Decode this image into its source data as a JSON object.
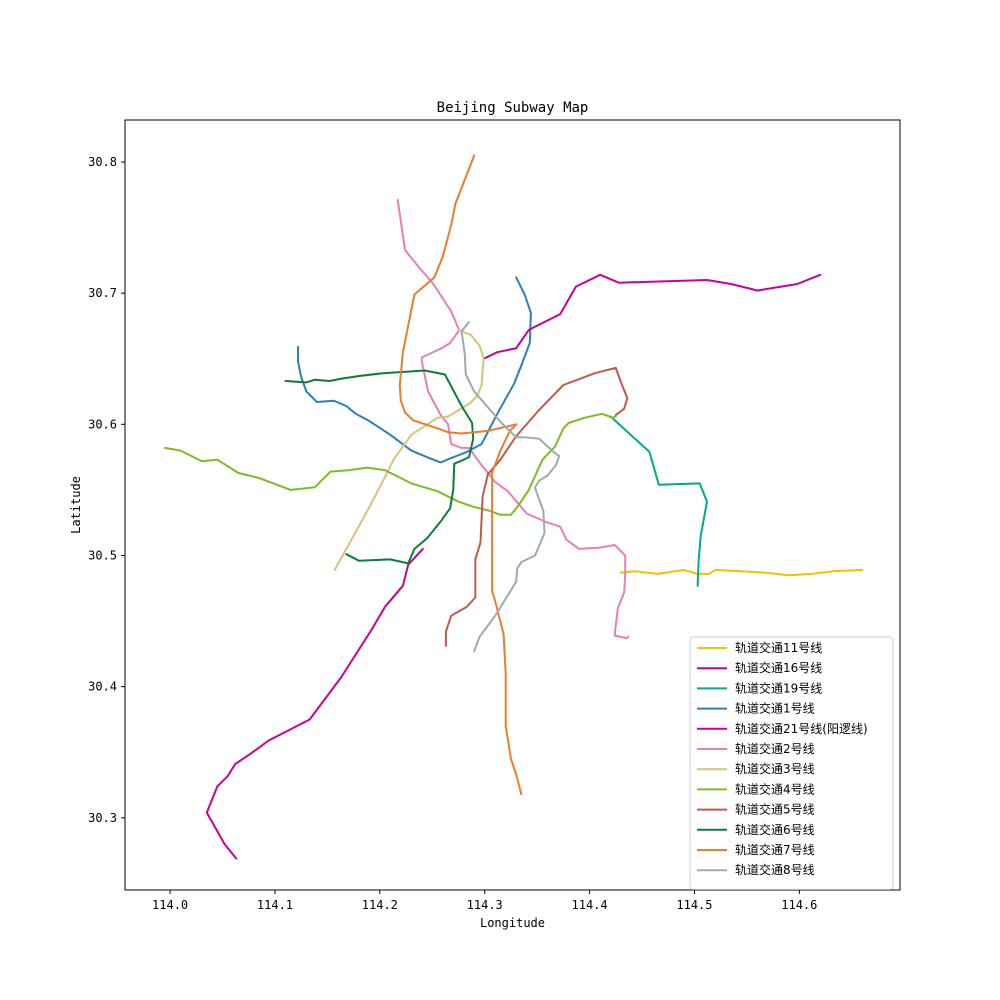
{
  "chart_data": {
    "type": "line",
    "title": "Beijing Subway Map",
    "xlabel": "Longitude",
    "ylabel": "Latitude",
    "xlim": [
      113.957,
      114.696
    ],
    "ylim": [
      30.245,
      30.832
    ],
    "xticks": [
      114.0,
      114.1,
      114.2,
      114.3,
      114.4,
      114.5,
      114.6
    ],
    "xtick_labels": [
      "114.0",
      "114.1",
      "114.2",
      "114.3",
      "114.4",
      "114.5",
      "114.6"
    ],
    "yticks": [
      30.3,
      30.4,
      30.5,
      30.6,
      30.7,
      30.8
    ],
    "ytick_labels": [
      "30.3",
      "30.4",
      "30.5",
      "30.6",
      "30.7",
      "30.8"
    ],
    "grid": false,
    "legend_position": "lower-right",
    "series": [
      {
        "name": "轨道交通11号线",
        "color": "#f2c200",
        "x": [
          114.43,
          114.443,
          114.465,
          114.49,
          114.503,
          114.514,
          114.52,
          114.545,
          114.567,
          114.59,
          114.612,
          114.632,
          114.66
        ],
        "y": [
          30.487,
          30.488,
          30.486,
          30.489,
          30.486,
          30.486,
          30.489,
          30.488,
          30.487,
          30.485,
          30.486,
          30.488,
          30.489
        ]
      },
      {
        "name": "轨道交通16号线",
        "color": "#cc0099",
        "x": [
          114.063,
          114.052,
          114.035,
          114.045,
          114.055,
          114.062,
          114.077,
          114.094,
          114.133,
          114.163,
          114.191,
          114.205,
          114.222,
          114.227,
          114.241
        ],
        "y": [
          30.269,
          30.28,
          30.304,
          30.324,
          30.332,
          30.341,
          30.349,
          30.359,
          30.375,
          30.407,
          30.442,
          30.461,
          30.477,
          30.493,
          30.505
        ]
      },
      {
        "name": "轨道交通19号线",
        "color": "#00a88e",
        "x": [
          114.42,
          114.457,
          114.466,
          114.505,
          114.512,
          114.506,
          114.504,
          114.503
        ],
        "y": [
          30.606,
          30.579,
          30.554,
          30.555,
          30.541,
          30.515,
          30.496,
          30.477
        ]
      },
      {
        "name": "轨道交通1号线",
        "color": "#2e7fb8",
        "x": [
          114.122,
          114.122,
          114.125,
          114.13,
          114.14,
          114.156,
          114.168,
          114.177,
          114.189,
          114.21,
          114.23,
          114.248,
          114.258,
          114.267,
          114.283,
          114.297,
          114.312,
          114.328,
          114.335,
          114.343,
          114.344,
          114.338,
          114.33
        ],
        "y": [
          30.659,
          30.648,
          30.636,
          30.625,
          30.617,
          30.618,
          30.614,
          30.608,
          30.603,
          30.592,
          30.58,
          30.574,
          30.571,
          30.574,
          30.579,
          30.585,
          30.608,
          30.631,
          30.645,
          30.662,
          30.685,
          30.699,
          30.712
        ]
      },
      {
        "name": "轨道交通21号线(阳逻线)",
        "color": "#cc0099",
        "x": [
          114.299,
          114.312,
          114.33,
          114.342,
          114.352,
          114.372,
          114.387,
          114.41,
          114.428,
          114.512,
          114.535,
          114.56,
          114.598,
          114.62
        ],
        "y": [
          30.65,
          30.655,
          30.658,
          30.672,
          30.676,
          30.684,
          30.705,
          30.714,
          30.708,
          30.71,
          30.707,
          30.702,
          30.707,
          30.714
        ]
      },
      {
        "name": "轨道交通2号线",
        "color": "#e87eb8",
        "x": [
          114.217,
          114.224,
          114.237,
          114.251,
          114.268,
          114.275,
          114.275,
          114.267,
          114.259,
          114.24,
          114.24,
          114.246,
          114.258,
          114.265,
          114.268,
          114.278,
          114.285,
          114.296,
          114.31,
          114.322,
          114.34,
          114.36,
          114.372,
          114.378,
          114.39,
          114.41,
          114.424,
          114.434,
          114.434,
          114.433,
          114.427,
          114.425,
          114.424,
          114.435,
          114.437
        ],
        "y": [
          30.771,
          30.733,
          30.72,
          30.707,
          30.686,
          30.673,
          30.671,
          30.662,
          30.658,
          30.651,
          30.648,
          30.625,
          30.607,
          30.6,
          30.585,
          30.582,
          30.582,
          30.57,
          30.556,
          30.549,
          30.532,
          30.525,
          30.522,
          30.512,
          30.505,
          30.506,
          30.508,
          30.5,
          30.486,
          30.472,
          30.46,
          30.447,
          30.439,
          30.437,
          30.438
        ]
      },
      {
        "name": "轨道交通3号线",
        "color": "#d6c27a",
        "x": [
          114.157,
          114.175,
          114.19,
          114.205,
          114.213,
          114.23,
          114.255,
          114.265,
          114.286,
          114.293,
          114.297,
          114.298,
          114.299,
          114.295,
          114.287,
          114.275
        ],
        "y": [
          30.489,
          30.515,
          30.537,
          30.56,
          30.573,
          30.592,
          30.605,
          30.606,
          30.616,
          30.622,
          30.63,
          30.64,
          30.65,
          30.66,
          30.668,
          30.672
        ]
      },
      {
        "name": "轨道交通4号线",
        "color": "#82ba24",
        "x": [
          113.995,
          114.01,
          114.03,
          114.045,
          114.065,
          114.085,
          114.115,
          114.138,
          114.153,
          114.17,
          114.188,
          114.205,
          114.23,
          114.255,
          114.275,
          114.29,
          114.305,
          114.315,
          114.325,
          114.332,
          114.342,
          114.355,
          114.367,
          114.375,
          114.38,
          114.395,
          114.412,
          114.422,
          114.425
        ],
        "y": [
          30.582,
          30.58,
          30.572,
          30.573,
          30.563,
          30.559,
          30.55,
          30.552,
          30.564,
          30.565,
          30.567,
          30.565,
          30.555,
          30.549,
          30.541,
          30.537,
          30.534,
          30.531,
          30.531,
          30.538,
          30.55,
          30.573,
          30.583,
          30.597,
          30.601,
          30.605,
          30.608,
          30.605,
          30.606
        ]
      },
      {
        "name": "轨道交通5号线",
        "color": "#bd5c4a",
        "x": [
          114.263,
          114.263,
          114.268,
          114.283,
          114.291,
          114.291,
          114.296,
          114.298,
          114.303,
          114.315,
          114.33,
          114.352,
          114.375,
          114.405,
          114.425,
          114.43,
          114.436,
          114.433,
          114.425
        ],
        "y": [
          30.431,
          30.442,
          30.454,
          30.461,
          30.468,
          30.497,
          30.51,
          30.545,
          30.562,
          30.573,
          30.591,
          30.611,
          30.63,
          30.639,
          30.643,
          30.632,
          30.62,
          30.612,
          30.607
        ]
      },
      {
        "name": "轨道交通6号线",
        "color": "#0a7d3a",
        "x": [
          114.11,
          114.13,
          114.138,
          114.152,
          114.165,
          114.182,
          114.203,
          114.243,
          114.262,
          114.268,
          114.278,
          114.288,
          114.289,
          114.285,
          114.277,
          114.271,
          114.27,
          114.267,
          114.258,
          114.245,
          114.233,
          114.227,
          114.21,
          114.18,
          114.168
        ],
        "y": [
          30.633,
          30.632,
          30.634,
          30.633,
          30.635,
          30.637,
          30.639,
          30.641,
          30.638,
          30.629,
          30.614,
          30.601,
          30.589,
          30.575,
          30.572,
          30.57,
          30.55,
          30.536,
          30.526,
          30.513,
          30.505,
          30.494,
          30.497,
          30.496,
          30.501
        ]
      },
      {
        "name": "轨道交通7号线",
        "color": "#ec7c2e",
        "x": [
          114.335,
          114.33,
          114.325,
          114.32,
          114.32,
          114.318,
          114.31,
          114.307,
          114.307,
          114.307,
          114.315,
          114.324,
          114.33,
          114.303,
          114.278,
          114.265,
          114.255,
          114.232,
          114.224,
          114.22,
          114.219,
          114.222,
          114.233,
          114.252,
          114.26,
          114.268,
          114.272,
          114.29
        ],
        "y": [
          30.318,
          30.333,
          30.345,
          30.37,
          30.41,
          30.44,
          30.465,
          30.473,
          30.533,
          30.563,
          30.58,
          30.595,
          30.6,
          30.595,
          30.593,
          30.594,
          30.597,
          30.603,
          30.609,
          30.618,
          30.63,
          30.655,
          30.699,
          30.712,
          30.728,
          30.752,
          30.768,
          30.805
        ]
      },
      {
        "name": "轨道交通8号线",
        "color": "#9aada8",
        "x": [
          114.29,
          114.295,
          114.31,
          114.33,
          114.331,
          114.335,
          114.348,
          114.357,
          114.356,
          114.35,
          114.348,
          114.352,
          114.36,
          114.368,
          114.371,
          114.367,
          114.352,
          114.34,
          114.33,
          114.316,
          114.303,
          114.29,
          114.282,
          114.281,
          114.278,
          114.285
        ],
        "y": [
          30.427,
          30.438,
          30.454,
          30.48,
          30.49,
          30.495,
          30.5,
          30.517,
          30.534,
          30.547,
          30.552,
          30.557,
          30.561,
          30.569,
          30.576,
          30.578,
          30.589,
          30.59,
          30.59,
          30.601,
          30.613,
          30.625,
          30.638,
          30.653,
          30.671,
          30.678
        ]
      }
    ]
  }
}
